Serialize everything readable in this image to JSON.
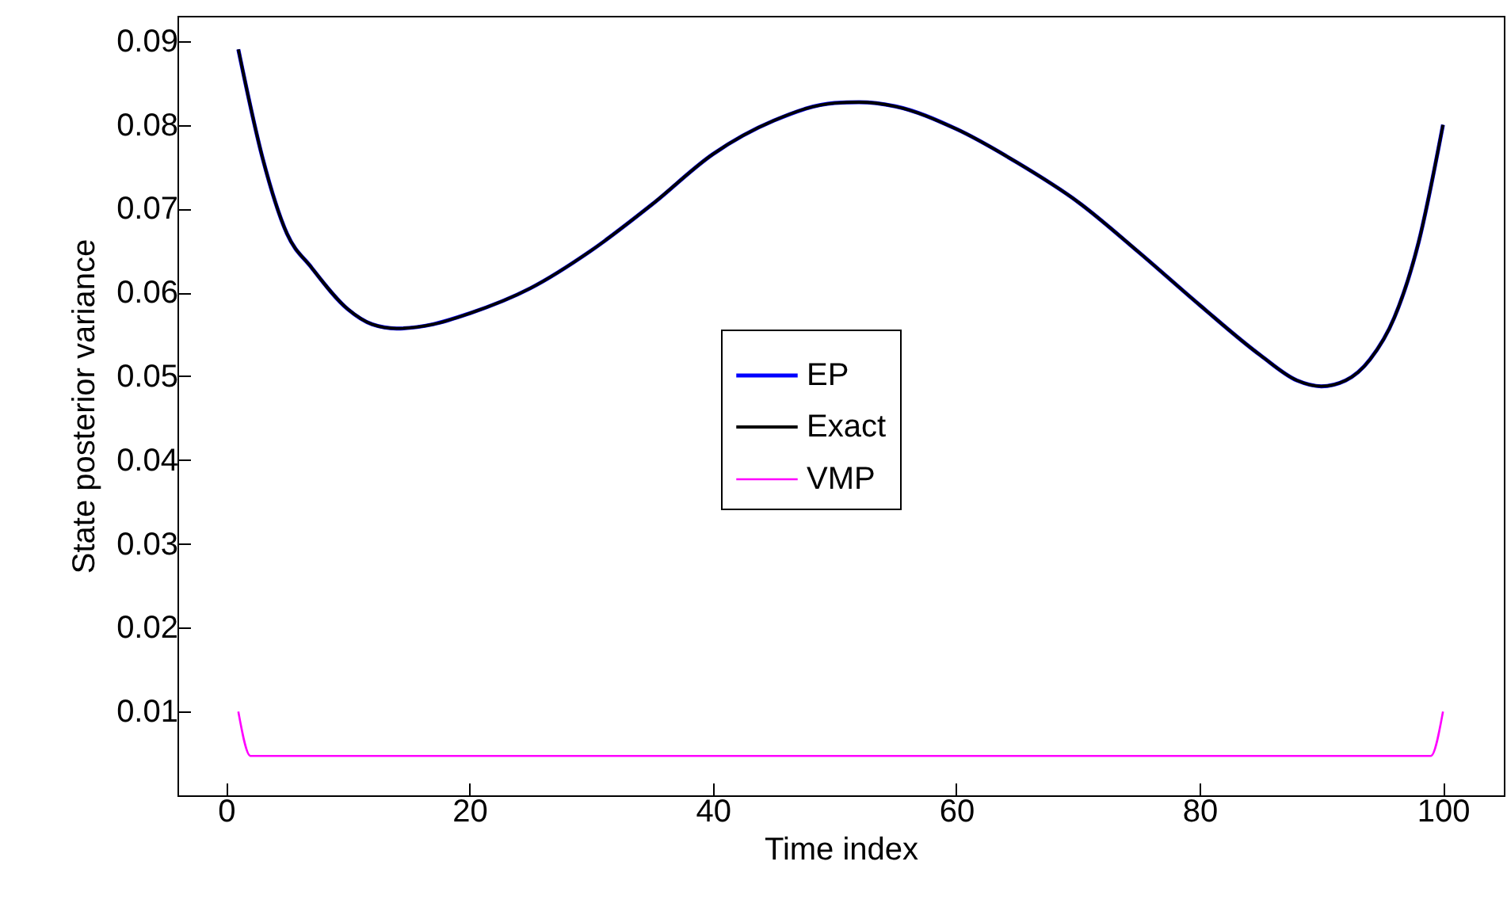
{
  "chart_data": {
    "type": "line",
    "xlabel": "Time index",
    "ylabel": "State posterior variance",
    "xlim": [
      -4,
      105
    ],
    "ylim": [
      0,
      0.093
    ],
    "xticks": [
      0,
      20,
      40,
      60,
      80,
      100
    ],
    "yticks": [
      0.01,
      0.02,
      0.03,
      0.04,
      0.05,
      0.06,
      0.07,
      0.08,
      0.09
    ],
    "grid": false,
    "legend": "center",
    "marker": "none",
    "line_style": "solid",
    "series": [
      {
        "name": "EP",
        "color": "#0000ff",
        "x": [
          1,
          3,
          5,
          7,
          10,
          12,
          14,
          17,
          20,
          25,
          30,
          35,
          40,
          45,
          50,
          52,
          55,
          60,
          65,
          70,
          75,
          80,
          85,
          88,
          90,
          92,
          94,
          96,
          98,
          100
        ],
        "values": [
          0.089,
          0.076,
          0.067,
          0.063,
          0.058,
          0.0562,
          0.0557,
          0.0562,
          0.0575,
          0.0605,
          0.065,
          0.0705,
          0.0765,
          0.0805,
          0.0826,
          0.0827,
          0.0822,
          0.0795,
          0.0755,
          0.0708,
          0.0648,
          0.0585,
          0.0525,
          0.0495,
          0.0488,
          0.0495,
          0.052,
          0.057,
          0.066,
          0.08
        ]
      },
      {
        "name": "Exact",
        "color": "#000000",
        "x": [
          1,
          3,
          5,
          7,
          10,
          12,
          14,
          17,
          20,
          25,
          30,
          35,
          40,
          45,
          50,
          52,
          55,
          60,
          65,
          70,
          75,
          80,
          85,
          88,
          90,
          92,
          94,
          96,
          98,
          100
        ],
        "values": [
          0.089,
          0.076,
          0.067,
          0.063,
          0.058,
          0.0562,
          0.0557,
          0.0562,
          0.0575,
          0.0605,
          0.065,
          0.0705,
          0.0765,
          0.0805,
          0.0826,
          0.0827,
          0.0822,
          0.0795,
          0.0755,
          0.0708,
          0.0648,
          0.0585,
          0.0525,
          0.0495,
          0.0488,
          0.0495,
          0.052,
          0.057,
          0.066,
          0.08
        ]
      },
      {
        "name": "VMP",
        "color": "#ff00ff",
        "x": [
          1,
          2,
          99,
          100
        ],
        "values": [
          0.01,
          0.0047,
          0.0047,
          0.01
        ]
      }
    ]
  }
}
